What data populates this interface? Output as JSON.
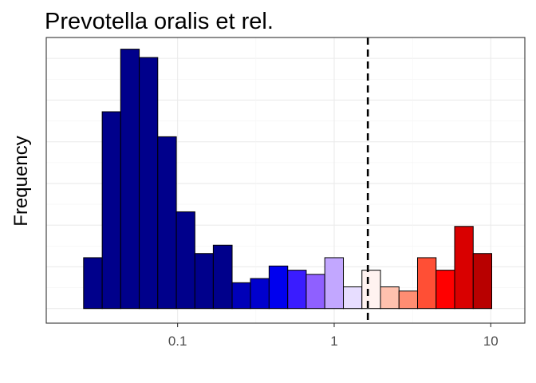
{
  "chart_data": {
    "type": "bar",
    "title": "Prevotella oralis et rel.",
    "xlabel": "",
    "ylabel": "Frequency",
    "x_scale": "log10",
    "xlim": [
      0.0145,
      16.5
    ],
    "ylim": [
      -0.35,
      6.5
    ],
    "x_ticks": [
      0.1,
      1,
      10
    ],
    "x_tick_labels": [
      "0.1",
      "1",
      "10"
    ],
    "grid": true,
    "legend": "none",
    "reference_line": {
      "x": 1.64,
      "style": "dashed",
      "color": "#000000"
    },
    "bins": [
      {
        "x0": 0.0251,
        "x1": 0.033,
        "value": 1.22,
        "color": "#00008B"
      },
      {
        "x0": 0.033,
        "x1": 0.0433,
        "value": 4.72,
        "color": "#00008B"
      },
      {
        "x0": 0.0433,
        "x1": 0.0569,
        "value": 6.22,
        "color": "#00008B"
      },
      {
        "x0": 0.0569,
        "x1": 0.0747,
        "value": 6.02,
        "color": "#00008B"
      },
      {
        "x0": 0.0747,
        "x1": 0.0982,
        "value": 4.12,
        "color": "#00008B"
      },
      {
        "x0": 0.0982,
        "x1": 0.129,
        "value": 2.32,
        "color": "#00008B"
      },
      {
        "x0": 0.129,
        "x1": 0.169,
        "value": 1.32,
        "color": "#00008B"
      },
      {
        "x0": 0.169,
        "x1": 0.223,
        "value": 1.52,
        "color": "#00008B"
      },
      {
        "x0": 0.223,
        "x1": 0.292,
        "value": 0.62,
        "color": "#0000B8"
      },
      {
        "x0": 0.292,
        "x1": 0.384,
        "value": 0.72,
        "color": "#0000CD"
      },
      {
        "x0": 0.384,
        "x1": 0.505,
        "value": 1.02,
        "color": "#0000EE"
      },
      {
        "x0": 0.505,
        "x1": 0.663,
        "value": 0.92,
        "color": "#3A1CFF"
      },
      {
        "x0": 0.663,
        "x1": 0.871,
        "value": 0.82,
        "color": "#8F60FF"
      },
      {
        "x0": 0.871,
        "x1": 1.145,
        "value": 1.22,
        "color": "#C2A7FF"
      },
      {
        "x0": 1.145,
        "x1": 1.504,
        "value": 0.52,
        "color": "#E7DDFF"
      },
      {
        "x0": 1.504,
        "x1": 1.975,
        "value": 0.92,
        "color": "#FFF2F0"
      },
      {
        "x0": 1.975,
        "x1": 2.594,
        "value": 0.52,
        "color": "#FFC1AE"
      },
      {
        "x0": 2.594,
        "x1": 3.407,
        "value": 0.42,
        "color": "#FF8D72"
      },
      {
        "x0": 3.407,
        "x1": 4.476,
        "value": 1.22,
        "color": "#FF4F35"
      },
      {
        "x0": 4.476,
        "x1": 5.879,
        "value": 0.92,
        "color": "#FF0000"
      },
      {
        "x0": 5.879,
        "x1": 7.722,
        "value": 1.97,
        "color": "#D90000"
      },
      {
        "x0": 7.722,
        "x1": 10.143,
        "value": 1.32,
        "color": "#B80000"
      }
    ]
  }
}
